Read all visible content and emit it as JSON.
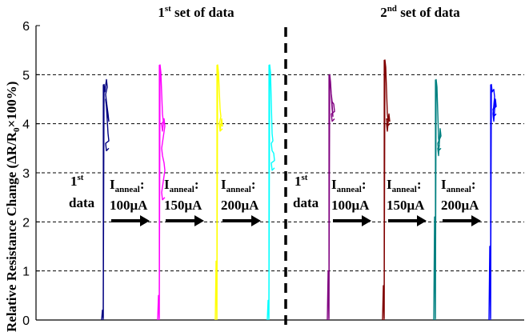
{
  "chart_data": {
    "type": "line",
    "title": "",
    "ylabel": "Relative Resistance Change (ΔR/R0×100%)",
    "ylabel_parts": {
      "pre": "Relative Resistance Change (ΔR/R",
      "sub": "0",
      "post": "×100%)"
    },
    "ylim": [
      0,
      6
    ],
    "yticks": [
      0,
      1,
      2,
      3,
      4,
      5,
      6
    ],
    "ytick_labels": [
      "0",
      "1",
      "2",
      "3",
      "4",
      "5",
      "6"
    ],
    "grid": {
      "y": true,
      "style": "dashed",
      "lines_at": [
        1,
        2,
        3,
        4,
        5
      ]
    },
    "group_headers": [
      {
        "num": "1",
        "sup": "st",
        "text": " set of data"
      },
      {
        "num": "2",
        "sup": "nd",
        "text": " set of data"
      }
    ],
    "separator": "dashed-vertical",
    "annotations": [
      {
        "kind": "first",
        "line1_num": "1",
        "line1_sup": "st",
        "line2": "data"
      },
      {
        "kind": "anneal",
        "main": "I",
        "sub": "anneal",
        "colon": ":",
        "value": "100μA"
      },
      {
        "kind": "anneal",
        "main": "I",
        "sub": "anneal",
        "colon": ":",
        "value": "150μA"
      },
      {
        "kind": "anneal",
        "main": "I",
        "sub": "anneal",
        "colon": ":",
        "value": "200μA"
      },
      {
        "kind": "first",
        "line1_num": "1",
        "line1_sup": "st",
        "line2": "data"
      },
      {
        "kind": "anneal",
        "main": "I",
        "sub": "anneal",
        "colon": ":",
        "value": "100μA"
      },
      {
        "kind": "anneal",
        "main": "I",
        "sub": "anneal",
        "colon": ":",
        "value": "150μA"
      },
      {
        "kind": "anneal",
        "main": "I",
        "sub": "anneal",
        "colon": ":",
        "value": "200μA"
      }
    ],
    "series": [
      {
        "color": "#000080",
        "values": [
          0.0,
          0.2,
          4.8,
          4.9,
          4.6,
          4.2,
          4.5,
          3.8,
          3.6
        ]
      },
      {
        "color": "#ff00ff",
        "values": [
          0.0,
          0.5,
          5.2,
          4.2,
          4.0,
          4.1,
          3.5,
          3.2,
          2.6
        ]
      },
      {
        "color": "#ffff00",
        "values": [
          0.0,
          1.2,
          5.2,
          4.3,
          4.0,
          4.1,
          4.0
        ]
      },
      {
        "color": "#00ffff",
        "values": [
          0.0,
          0.4,
          5.2,
          3.8,
          3.6,
          3.4,
          3.2
        ]
      },
      {
        "color": "#800080",
        "values": [
          0.0,
          1.0,
          5.0,
          4.3,
          4.6,
          4.4,
          4.2
        ]
      },
      {
        "color": "#800000",
        "values": [
          0.0,
          0.7,
          5.3,
          4.2,
          4.0,
          4.2,
          4.1
        ]
      },
      {
        "color": "#008080",
        "values": [
          0.0,
          2.1,
          4.9,
          3.7,
          3.5,
          3.9,
          3.6
        ]
      },
      {
        "color": "#0000ff",
        "values": [
          0.0,
          1.5,
          4.8,
          4.7,
          4.2,
          4.5,
          4.3
        ]
      }
    ]
  }
}
